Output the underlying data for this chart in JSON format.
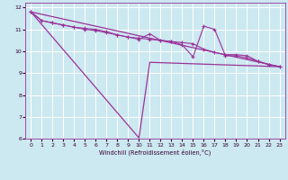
{
  "xlabel": "Windchill (Refroidissement éolien,°C)",
  "bg_color": "#cce8f0",
  "line_color": "#993399",
  "grid_color": "#ffffff",
  "xlim": [
    -0.5,
    23.5
  ],
  "ylim": [
    6,
    12.2
  ],
  "xticks": [
    0,
    1,
    2,
    3,
    4,
    5,
    6,
    7,
    8,
    9,
    10,
    11,
    12,
    13,
    14,
    15,
    16,
    17,
    18,
    19,
    20,
    21,
    22,
    23
  ],
  "yticks": [
    6,
    7,
    8,
    9,
    10,
    11,
    12
  ],
  "series1_straight": {
    "x": [
      0,
      23
    ],
    "y": [
      11.8,
      9.3
    ]
  },
  "series2_steep": {
    "x": [
      0,
      10,
      11,
      23
    ],
    "y": [
      11.8,
      6.05,
      9.5,
      9.3
    ]
  },
  "series3_jagged": {
    "x": [
      0,
      1,
      2,
      3,
      4,
      5,
      6,
      7,
      8,
      9,
      10,
      11,
      12,
      13,
      14,
      15,
      16,
      17,
      18,
      19,
      20,
      21,
      22,
      23
    ],
    "y": [
      11.8,
      11.4,
      11.3,
      11.2,
      11.1,
      11.05,
      11.0,
      10.9,
      10.75,
      10.65,
      10.55,
      10.8,
      10.5,
      10.45,
      10.3,
      9.75,
      11.15,
      11.0,
      9.8,
      9.8,
      9.7,
      9.55,
      9.4,
      9.3
    ]
  },
  "series4_mid": {
    "x": [
      0,
      1,
      2,
      3,
      4,
      5,
      6,
      7,
      8,
      9,
      10,
      11,
      12,
      13,
      14,
      15,
      16,
      17,
      18,
      19,
      20,
      21,
      22,
      23
    ],
    "y": [
      11.8,
      11.4,
      11.3,
      11.2,
      11.1,
      11.0,
      10.95,
      10.85,
      10.75,
      10.65,
      10.6,
      10.55,
      10.5,
      10.45,
      10.4,
      10.35,
      10.1,
      9.95,
      9.85,
      9.85,
      9.8,
      9.55,
      9.4,
      9.3
    ]
  }
}
